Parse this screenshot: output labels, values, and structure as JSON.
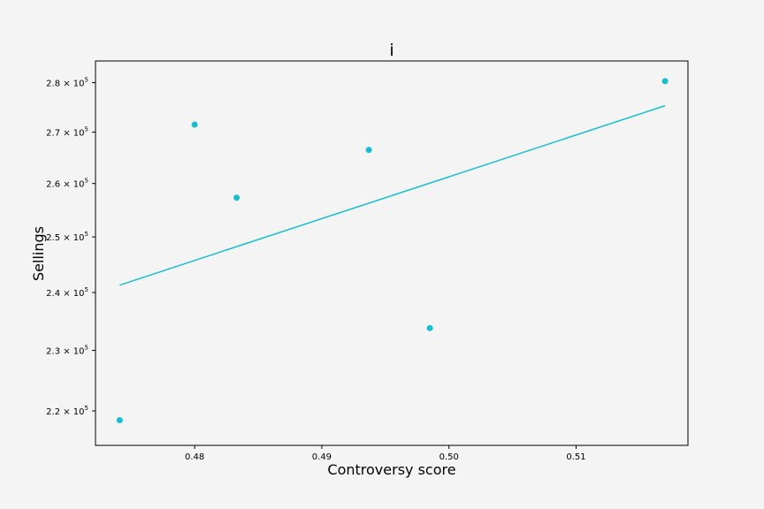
{
  "chart_data": {
    "type": "scatter",
    "title": "i",
    "xlabel": "Controversy score",
    "ylabel": "Sellings",
    "xlim": [
      0.4722,
      0.5188
    ],
    "ylim": [
      214500,
      284500
    ],
    "y_scale": "log",
    "grid": false,
    "x_ticks": [
      {
        "value": 0.48,
        "label": "0.48"
      },
      {
        "value": 0.49,
        "label": "0.49"
      },
      {
        "value": 0.5,
        "label": "0.50"
      },
      {
        "value": 0.51,
        "label": "0.51"
      }
    ],
    "y_ticks": [
      {
        "value": 220000,
        "mantissa": "2.2",
        "exp": "5"
      },
      {
        "value": 230000,
        "mantissa": "2.3",
        "exp": "5"
      },
      {
        "value": 240000,
        "mantissa": "2.4",
        "exp": "5"
      },
      {
        "value": 250000,
        "mantissa": "2.5",
        "exp": "5"
      },
      {
        "value": 260000,
        "mantissa": "2.6",
        "exp": "5"
      },
      {
        "value": 270000,
        "mantissa": "2.7",
        "exp": "5"
      },
      {
        "value": 280000,
        "mantissa": "2.8",
        "exp": "5"
      }
    ],
    "points": [
      {
        "x": 0.4741,
        "y": 218500
      },
      {
        "x": 0.48,
        "y": 271500
      },
      {
        "x": 0.4833,
        "y": 257300
      },
      {
        "x": 0.4937,
        "y": 266500
      },
      {
        "x": 0.4985,
        "y": 233800
      },
      {
        "x": 0.517,
        "y": 280300
      }
    ],
    "trend_line": [
      {
        "x": 0.4741,
        "y": 241300
      },
      {
        "x": 0.517,
        "y": 275300
      }
    ],
    "color": "#17becf"
  }
}
